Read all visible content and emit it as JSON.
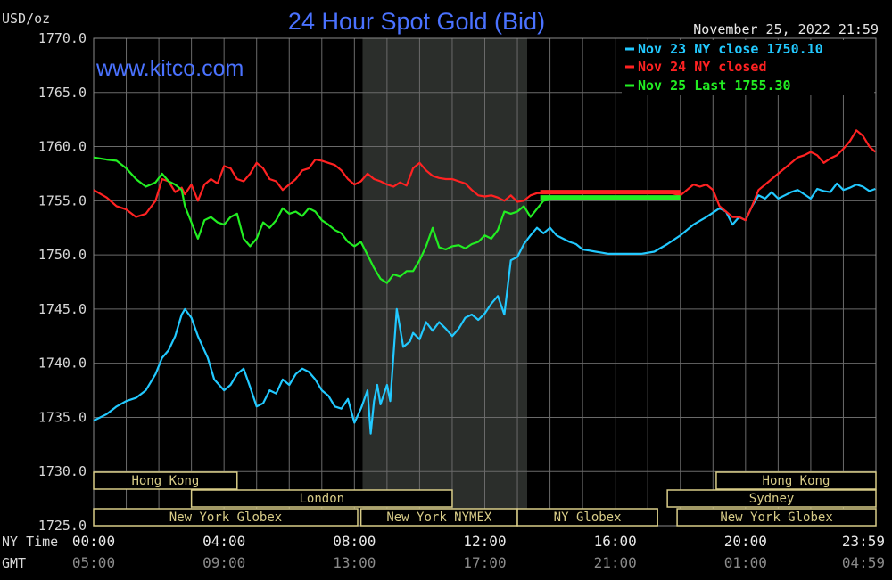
{
  "chart_data": {
    "type": "line",
    "title": "24 Hour Spot Gold (Bid)",
    "ylabel": "USD/oz",
    "timestamp": "November 25, 2022 21:59",
    "watermark": "www.kitco.com",
    "ylim": [
      1725,
      1770
    ],
    "yticks": [
      "1770.0",
      "1765.0",
      "1760.0",
      "1755.0",
      "1750.0",
      "1745.0",
      "1740.0",
      "1735.0",
      "1730.0",
      "1725.0"
    ],
    "x_rows": [
      {
        "label": "NY Time",
        "ticks": [
          "00:00",
          "04:00",
          "08:00",
          "12:00",
          "16:00",
          "20:00",
          "23:59"
        ]
      },
      {
        "label": "GMT",
        "ticks": [
          "05:00",
          "09:00",
          "13:00",
          "17:00",
          "21:00",
          "01:00",
          "04:59"
        ]
      }
    ],
    "xlim": [
      0,
      24
    ],
    "legend": {
      "placement": "top-right",
      "entries": [
        {
          "text": "Nov 23 NY close 1750.10",
          "color": "#22c9ff"
        },
        {
          "text": "Nov 24 NY closed",
          "color": "#ff2222"
        },
        {
          "text": "Nov 25 Last 1755.30",
          "color": "#22ee22"
        }
      ]
    },
    "shaded_period": [
      8.25,
      13.3
    ],
    "sessions": [
      {
        "label": "Hong Kong",
        "row": 0,
        "start": 0,
        "end": 4.4
      },
      {
        "label": "Hong Kong",
        "row": 0,
        "start": 19.1,
        "end": 24
      },
      {
        "label": "London",
        "row": 1,
        "start": 3.0,
        "end": 11.0
      },
      {
        "label": "Sydney",
        "row": 1,
        "start": 17.6,
        "end": 24
      },
      {
        "label": "New York Globex",
        "row": 2,
        "start": 0,
        "end": 8.1
      },
      {
        "label": "New York NYMEX",
        "row": 2,
        "start": 8.2,
        "end": 13.0
      },
      {
        "label": "NY Globex",
        "row": 2,
        "start": 13.0,
        "end": 17.3
      },
      {
        "label": "New York Globex",
        "row": 2,
        "start": 17.9,
        "end": 24
      }
    ],
    "series": [
      {
        "color": "#22c9ff",
        "x": [
          0,
          0.4,
          0.7,
          1.0,
          1.3,
          1.6,
          1.9,
          2.1,
          2.3,
          2.5,
          2.7,
          2.8,
          3.0,
          3.2,
          3.5,
          3.7,
          4.0,
          4.2,
          4.4,
          4.6,
          4.8,
          5.0,
          5.2,
          5.4,
          5.6,
          5.8,
          6.0,
          6.2,
          6.4,
          6.6,
          6.8,
          7.0,
          7.2,
          7.4,
          7.6,
          7.8,
          8.0,
          8.2,
          8.4,
          8.5,
          8.6,
          8.7,
          8.8,
          9.0,
          9.1,
          9.3,
          9.5,
          9.7,
          9.8,
          10.0,
          10.2,
          10.4,
          10.6,
          10.8,
          11.0,
          11.2,
          11.4,
          11.6,
          11.8,
          12.0,
          12.2,
          12.4,
          12.6,
          12.8,
          13.0,
          13.2,
          13.4,
          13.6,
          13.8,
          14.0,
          14.2,
          14.4,
          14.6,
          14.8,
          15.0,
          15.2,
          15.4,
          15.6,
          15.8,
          16.0,
          16.4,
          16.8,
          17.2,
          17.6,
          18.0,
          18.4,
          18.8,
          19.2,
          19.4,
          19.6,
          19.8,
          20.0,
          20.2,
          20.4,
          20.6,
          20.8,
          21.0,
          21.2,
          21.4,
          21.6,
          21.8,
          22.0,
          22.2,
          22.4,
          22.6,
          22.8,
          23.0,
          23.2,
          23.4,
          23.6,
          23.8,
          23.98
        ],
        "y": [
          1734.7,
          1735.3,
          1736.0,
          1736.5,
          1736.8,
          1737.5,
          1739.0,
          1740.5,
          1741.2,
          1742.5,
          1744.5,
          1745.0,
          1744.2,
          1742.5,
          1740.5,
          1738.5,
          1737.5,
          1738.0,
          1739.0,
          1739.5,
          1737.8,
          1736.0,
          1736.3,
          1737.5,
          1737.2,
          1738.5,
          1738.0,
          1739.0,
          1739.5,
          1739.2,
          1738.5,
          1737.5,
          1737.0,
          1736.0,
          1735.8,
          1736.7,
          1734.5,
          1735.8,
          1737.5,
          1733.5,
          1736.5,
          1738.0,
          1736.2,
          1738.0,
          1736.5,
          1745.0,
          1741.5,
          1742.0,
          1742.8,
          1742.2,
          1743.8,
          1743.0,
          1743.8,
          1743.2,
          1742.5,
          1743.2,
          1744.2,
          1744.5,
          1744.0,
          1744.6,
          1745.5,
          1746.2,
          1744.5,
          1749.5,
          1749.8,
          1751.0,
          1751.8,
          1752.5,
          1752.0,
          1752.5,
          1751.8,
          1751.5,
          1751.2,
          1751.0,
          1750.5,
          1750.4,
          1750.3,
          1750.2,
          1750.1,
          1750.1,
          1750.1,
          1750.1,
          1750.3,
          1751.0,
          1751.8,
          1752.8,
          1753.5,
          1754.3,
          1754.0,
          1752.8,
          1753.5,
          1753.2,
          1754.5,
          1755.5,
          1755.2,
          1755.8,
          1755.2,
          1755.5,
          1755.8,
          1756.0,
          1755.6,
          1755.2,
          1756.1,
          1755.9,
          1755.8,
          1756.6,
          1756.0,
          1756.2,
          1756.5,
          1756.3,
          1755.9,
          1756.1
        ],
        "end_label": "Nov 23 NY close 1750.10"
      },
      {
        "color": "#ff2222",
        "x": [
          0,
          0.4,
          0.7,
          1.0,
          1.3,
          1.6,
          1.9,
          2.1,
          2.3,
          2.5,
          2.7,
          2.8,
          3.0,
          3.2,
          3.4,
          3.6,
          3.8,
          4.0,
          4.2,
          4.4,
          4.6,
          4.8,
          5.0,
          5.2,
          5.4,
          5.6,
          5.8,
          6.0,
          6.2,
          6.4,
          6.6,
          6.8,
          7.0,
          7.2,
          7.4,
          7.6,
          7.8,
          8.0,
          8.2,
          8.4,
          8.6,
          8.8,
          9.0,
          9.2,
          9.4,
          9.6,
          9.8,
          10.0,
          10.2,
          10.4,
          10.6,
          10.8,
          11.0,
          11.2,
          11.4,
          11.6,
          11.8,
          12.0,
          12.2,
          12.4,
          12.6,
          12.8,
          13.0,
          13.2,
          13.4,
          13.6,
          13.8,
          14.0,
          14.4,
          14.8,
          15.2,
          15.6,
          16.0,
          16.4,
          16.8,
          17.2,
          17.6,
          18.0,
          18.2,
          18.4,
          18.6,
          18.8,
          19.0,
          19.2,
          19.4,
          19.6,
          19.8,
          20.0,
          20.2,
          20.4,
          20.6,
          20.8,
          21.0,
          21.2,
          21.4,
          21.6,
          21.8,
          22.0,
          22.2,
          22.4,
          22.6,
          22.8,
          23.0,
          23.2,
          23.4,
          23.6,
          23.8,
          23.98
        ],
        "y": [
          1756.0,
          1755.3,
          1754.5,
          1754.2,
          1753.5,
          1753.8,
          1755.0,
          1757.0,
          1756.8,
          1755.8,
          1756.2,
          1755.6,
          1756.5,
          1755.0,
          1756.5,
          1757.0,
          1756.6,
          1758.2,
          1758.0,
          1757.0,
          1756.8,
          1757.5,
          1758.5,
          1758.0,
          1757.0,
          1756.8,
          1756.0,
          1756.5,
          1757.0,
          1757.8,
          1758.0,
          1758.8,
          1758.7,
          1758.5,
          1758.3,
          1757.8,
          1757.0,
          1756.5,
          1756.8,
          1757.5,
          1757.0,
          1756.8,
          1756.5,
          1756.3,
          1756.7,
          1756.4,
          1758.0,
          1758.5,
          1757.8,
          1757.3,
          1757.1,
          1757.0,
          1757.0,
          1756.8,
          1756.6,
          1756.0,
          1755.5,
          1755.4,
          1755.5,
          1755.3,
          1755.0,
          1755.5,
          1754.9,
          1755.0,
          1755.5,
          1755.7,
          1755.7,
          1755.8,
          1755.8,
          1755.8,
          1755.8,
          1755.8,
          1755.8,
          1755.8,
          1755.8,
          1755.8,
          1755.8,
          1755.5,
          1756.0,
          1756.5,
          1756.3,
          1756.5,
          1756.0,
          1754.5,
          1754.0,
          1753.5,
          1753.5,
          1753.2,
          1754.5,
          1756.0,
          1756.5,
          1757.0,
          1757.5,
          1758.0,
          1758.5,
          1759.0,
          1759.2,
          1759.5,
          1759.2,
          1758.5,
          1758.9,
          1759.2,
          1759.8,
          1760.5,
          1761.5,
          1761.0,
          1760.0,
          1759.5
        ],
        "end_label": "Nov 24 NY closed"
      },
      {
        "color": "#22ee22",
        "x": [
          0,
          0.4,
          0.7,
          1.0,
          1.3,
          1.6,
          1.9,
          2.1,
          2.3,
          2.5,
          2.7,
          2.8,
          3.0,
          3.2,
          3.4,
          3.6,
          3.8,
          4.0,
          4.2,
          4.4,
          4.6,
          4.8,
          5.0,
          5.2,
          5.4,
          5.6,
          5.8,
          6.0,
          6.2,
          6.4,
          6.6,
          6.8,
          7.0,
          7.2,
          7.4,
          7.6,
          7.8,
          8.0,
          8.2,
          8.4,
          8.6,
          8.8,
          9.0,
          9.2,
          9.4,
          9.6,
          9.8,
          10.0,
          10.2,
          10.4,
          10.6,
          10.8,
          11.0,
          11.2,
          11.4,
          11.6,
          11.8,
          12.0,
          12.2,
          12.4,
          12.6,
          12.8,
          13.0,
          13.2,
          13.4,
          13.8,
          14.2,
          14.6,
          15.0,
          15.4,
          15.8,
          16.2,
          16.6,
          17.0,
          17.4,
          17.8,
          17.98
        ],
        "y": [
          1759.0,
          1758.8,
          1758.7,
          1758.0,
          1757.0,
          1756.3,
          1756.7,
          1757.5,
          1756.8,
          1756.5,
          1756.0,
          1754.5,
          1753.0,
          1751.5,
          1753.2,
          1753.5,
          1753.0,
          1752.8,
          1753.5,
          1753.8,
          1751.5,
          1750.8,
          1751.5,
          1753.0,
          1752.5,
          1753.2,
          1754.3,
          1753.8,
          1754.0,
          1753.6,
          1754.3,
          1754.0,
          1753.2,
          1752.8,
          1752.3,
          1752.0,
          1751.2,
          1750.8,
          1751.2,
          1750.0,
          1748.8,
          1747.8,
          1747.4,
          1748.2,
          1748.0,
          1748.5,
          1748.5,
          1749.5,
          1750.8,
          1752.5,
          1750.7,
          1750.5,
          1750.8,
          1750.9,
          1750.6,
          1751.0,
          1751.2,
          1751.8,
          1751.5,
          1752.3,
          1754.0,
          1753.8,
          1754.0,
          1754.5,
          1753.5,
          1755.0,
          1755.2,
          1755.3,
          1755.3,
          1755.3,
          1755.3,
          1755.3,
          1755.3,
          1755.3,
          1755.3,
          1755.3,
          1755.3
        ],
        "end_label": "Nov 25 Last 1755.30"
      }
    ]
  }
}
